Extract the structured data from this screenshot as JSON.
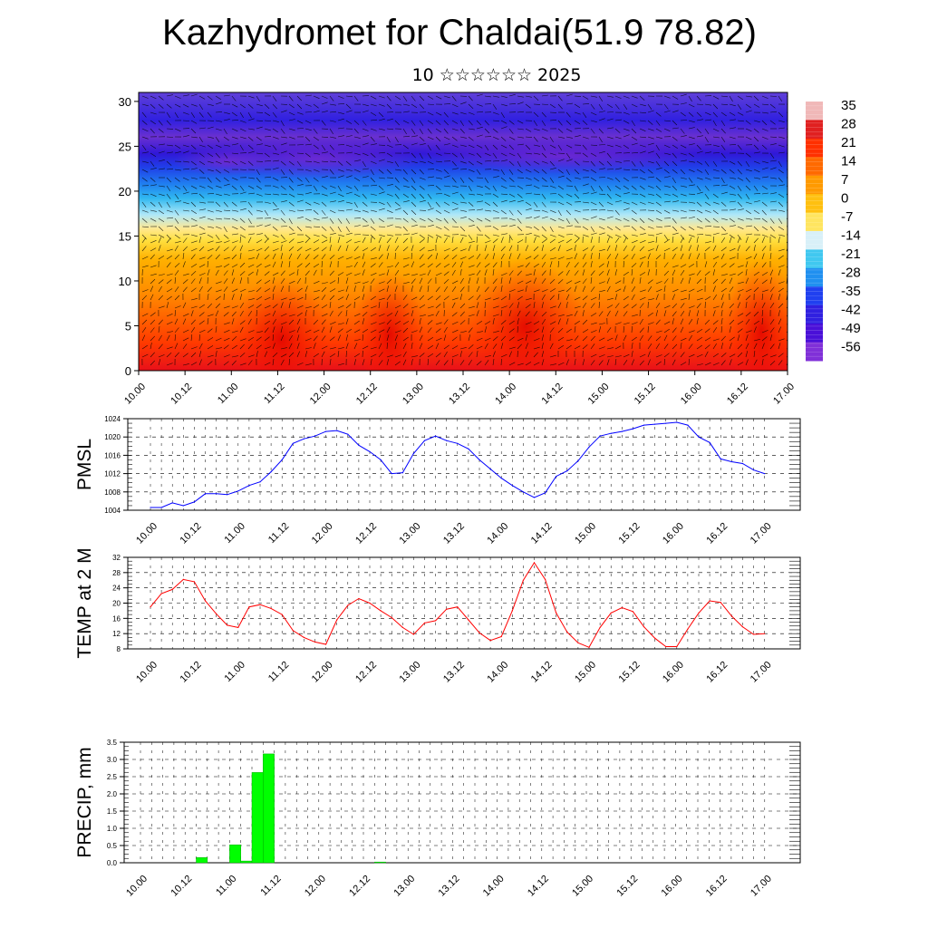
{
  "title": "Kazhydromet for Chaldai(51.9 78.82)",
  "subtitle": "10 ☆☆☆☆☆☆ 2025",
  "time_ticks": [
    "10.00",
    "10.12",
    "11.00",
    "11.12",
    "12.00",
    "12.12",
    "13.00",
    "13.12",
    "14.00",
    "14.12",
    "15.00",
    "15.12",
    "16.00",
    "16.12",
    "17.00"
  ],
  "chart_data": [
    {
      "type": "heatmap",
      "name": "cross-section",
      "description_fields": "temperature (colour) with wind barbs vs height",
      "y_ticks": [
        0,
        5,
        10,
        15,
        20,
        25,
        30
      ],
      "ylim": [
        0,
        31
      ],
      "colorbar_labels": [
        "35",
        "28",
        "21",
        "14",
        "7",
        "0",
        "-7",
        "-14",
        "-21",
        "-28",
        "-35",
        "-42",
        "-49",
        "-56"
      ],
      "colorbar_colors": [
        "#f0b8b8",
        "#e02020",
        "#ff3000",
        "#ff6a00",
        "#ff9a00",
        "#ffc010",
        "#ffe560",
        "#d8f0f8",
        "#40c8f0",
        "#2090f0",
        "#2040f0",
        "#3020e0",
        "#4a10d8",
        "#8030d8"
      ]
    },
    {
      "type": "line",
      "ylabel": "PMSL",
      "ylim": [
        1004,
        1024
      ],
      "y_ticks": [
        1004,
        1008,
        1012,
        1016,
        1020,
        1024
      ],
      "color": "#0000ff",
      "values": [
        1004.6,
        1004.6,
        1005.6,
        1005.0,
        1005.8,
        1007.6,
        1007.6,
        1007.4,
        1008.2,
        1009.4,
        1010.2,
        1012.4,
        1015.0,
        1018.6,
        1019.6,
        1020.2,
        1021.2,
        1021.4,
        1020.6,
        1018.2,
        1016.8,
        1015.0,
        1012.0,
        1012.2,
        1016.4,
        1019.2,
        1020.2,
        1019.2,
        1018.6,
        1017.4,
        1015.0,
        1013.0,
        1011.0,
        1009.4,
        1008.0,
        1006.8,
        1007.8,
        1011.4,
        1012.6,
        1014.8,
        1017.8,
        1020.2,
        1020.8,
        1021.2,
        1021.8,
        1022.6,
        1022.8,
        1023.0,
        1023.2,
        1022.6,
        1020.0,
        1018.8,
        1015.2,
        1014.6,
        1014.2,
        1012.8,
        1012.0
      ]
    },
    {
      "type": "line",
      "ylabel": "TEMP at 2 M",
      "ylim": [
        8,
        32
      ],
      "y_ticks": [
        8,
        12,
        16,
        20,
        24,
        28,
        32
      ],
      "color": "#ff0000",
      "values": [
        19.0,
        22.5,
        23.6,
        26.2,
        25.6,
        20.6,
        17.2,
        14.2,
        13.6,
        19.0,
        19.6,
        18.6,
        17.0,
        12.8,
        11.0,
        9.8,
        9.2,
        15.6,
        19.4,
        21.2,
        20.0,
        18.0,
        16.2,
        13.6,
        11.8,
        14.8,
        15.4,
        18.4,
        19.0,
        15.6,
        12.2,
        10.2,
        11.2,
        18.0,
        26.0,
        30.6,
        26.2,
        17.4,
        12.4,
        9.6,
        8.4,
        13.6,
        17.4,
        18.8,
        17.8,
        13.8,
        10.8,
        8.6,
        8.6,
        13.2,
        17.4,
        20.6,
        20.2,
        16.6,
        13.8,
        11.8,
        12.0
      ]
    },
    {
      "type": "bar",
      "ylabel": "PRECIP, mm",
      "ylim": [
        0,
        3.5
      ],
      "y_ticks": [
        "0.0",
        "0.5",
        "1.0",
        "1.5",
        "2.0",
        "2.5",
        "3.0",
        "3.5"
      ],
      "color": "#00ff00",
      "values": [
        0,
        0,
        0,
        0,
        0,
        0.15,
        0,
        0,
        0.52,
        0.05,
        2.62,
        3.16,
        0,
        0,
        0,
        0,
        0,
        0,
        0,
        0,
        0,
        0.02,
        0,
        0,
        0,
        0,
        0,
        0,
        0,
        0,
        0,
        0,
        0,
        0,
        0,
        0,
        0,
        0,
        0,
        0,
        0,
        0,
        0,
        0,
        0,
        0,
        0,
        0,
        0,
        0,
        0,
        0,
        0,
        0,
        0,
        0
      ]
    }
  ]
}
